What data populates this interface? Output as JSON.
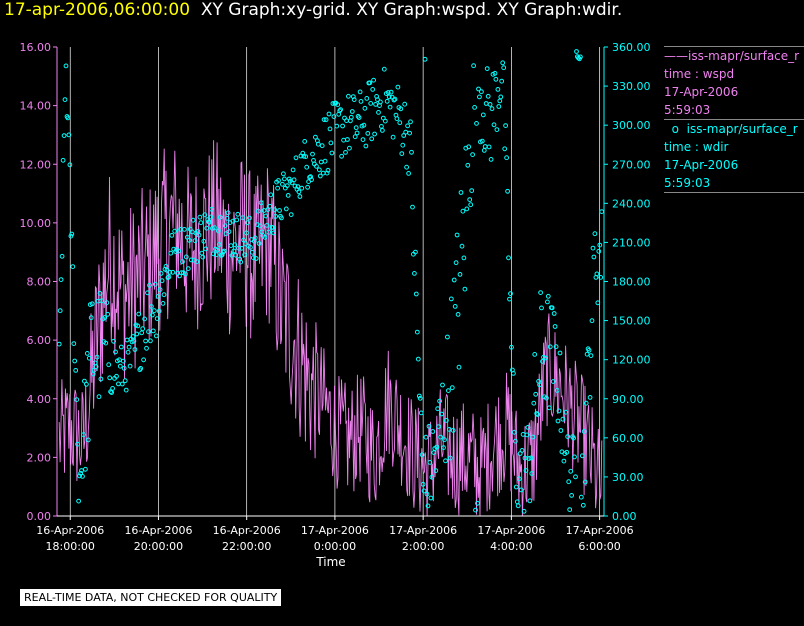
{
  "header": {
    "timestamp": "17-apr-2006,06:00:00",
    "titles": "XY Graph:xy-grid.  XY Graph:wspd.  XY Graph:wdir."
  },
  "legend": {
    "wspd": {
      "name": "iss-mapr/surface_r",
      "line2": "time : wspd",
      "line3": "17-Apr-2006",
      "line4": "5:59:03"
    },
    "wdir": {
      "name": "iss-mapr/surface_r",
      "line2": "time : wdir",
      "line3": "17-Apr-2006",
      "line4": "5:59:03"
    }
  },
  "footer": {
    "notice": "REAL-TIME DATA, NOT CHECKED FOR QUALITY"
  },
  "colors": {
    "wspd": "#ee82ee",
    "wdir": "#00ffff",
    "grid": "#ffffff",
    "title": "#ffff00"
  },
  "chart_data": {
    "type": "line",
    "xlabel": "Time",
    "x_range_hours": [
      17.7,
      30.1
    ],
    "x_ticks": [
      {
        "hour": 18,
        "line1": "16-Apr-2006",
        "line2": "18:00:00"
      },
      {
        "hour": 20,
        "line1": "16-Apr-2006",
        "line2": "20:00:00"
      },
      {
        "hour": 22,
        "line1": "16-Apr-2006",
        "line2": "22:00:00"
      },
      {
        "hour": 24,
        "line1": "17-Apr-2006",
        "line2": "0:00:00"
      },
      {
        "hour": 26,
        "line1": "17-Apr-2006",
        "line2": "2:00:00"
      },
      {
        "hour": 28,
        "line1": "17-Apr-2006",
        "line2": "4:00:00"
      },
      {
        "hour": 30,
        "line1": "17-Apr-2006",
        "line2": "6:00:00"
      }
    ],
    "y_left": {
      "min": 0,
      "max": 16,
      "ticks": [
        "0.00",
        "2.00",
        "4.00",
        "6.00",
        "8.00",
        "10.00",
        "12.00",
        "14.00",
        "16.00"
      ]
    },
    "y_right": {
      "min": 0,
      "max": 360,
      "ticks": [
        "0.00",
        "30.00",
        "60.00",
        "90.00",
        "120.00",
        "150.00",
        "180.00",
        "210.00",
        "240.00",
        "270.00",
        "300.00",
        "330.00",
        "360.00"
      ]
    },
    "series": [
      {
        "name": "iss-mapr/surface_r time : wspd",
        "axis": "left",
        "style": "line",
        "hours": [
          17.7,
          18.0,
          18.3,
          18.6,
          18.9,
          19.2,
          19.5,
          19.8,
          20.1,
          20.4,
          20.7,
          21.0,
          21.3,
          21.6,
          21.9,
          22.2,
          22.5,
          22.8,
          23.1,
          23.4,
          23.7,
          24.0,
          24.3,
          24.6,
          24.9,
          25.2,
          25.5,
          25.8,
          26.1,
          26.4,
          26.7,
          27.0,
          27.3,
          27.6,
          27.9,
          28.2,
          28.5,
          28.8,
          29.1,
          29.4,
          29.7,
          30.0
        ],
        "values": [
          2.5,
          3.0,
          2.5,
          6.0,
          9.0,
          7.5,
          8.0,
          8.5,
          9.5,
          10.0,
          9.0,
          9.5,
          10.0,
          9.0,
          9.5,
          8.5,
          9.5,
          7.0,
          6.0,
          4.5,
          4.0,
          3.0,
          2.5,
          3.0,
          2.0,
          4.0,
          3.0,
          2.0,
          1.5,
          2.5,
          2.0,
          2.0,
          1.5,
          2.5,
          3.0,
          1.5,
          2.0,
          5.0,
          4.5,
          3.5,
          2.5,
          1.0
        ],
        "amplitudes": [
          2,
          2,
          2,
          3,
          3,
          3,
          3,
          3,
          3,
          3,
          3,
          3,
          3,
          3,
          3,
          3,
          3,
          3,
          3,
          3,
          2,
          2,
          2,
          2,
          2,
          2,
          2,
          2,
          2,
          2,
          2,
          2,
          2,
          2,
          2,
          2,
          2,
          2,
          2,
          2,
          2,
          2
        ]
      },
      {
        "name": "iss-mapr/surface_r time : wdir",
        "axis": "right",
        "style": "markers",
        "hours": [
          17.7,
          17.9,
          18.2,
          18.5,
          18.8,
          19.1,
          19.4,
          19.7,
          20.0,
          20.3,
          20.6,
          20.9,
          21.2,
          21.5,
          21.8,
          22.1,
          22.4,
          22.7,
          23.0,
          23.3,
          23.6,
          23.9,
          24.2,
          24.5,
          24.8,
          25.1,
          25.4,
          25.7,
          26.0,
          26.3,
          26.6,
          26.9,
          27.2,
          27.5,
          27.8,
          28.1,
          28.4,
          28.7,
          29.0,
          29.3,
          29.6,
          29.9
        ],
        "values": [
          30,
          350,
          25,
          130,
          130,
          110,
          120,
          150,
          170,
          200,
          205,
          215,
          220,
          220,
          215,
          210,
          225,
          240,
          250,
          270,
          280,
          290,
          300,
          300,
          310,
          320,
          310,
          290,
          20,
          50,
          100,
          200,
          340,
          300,
          345,
          30,
          40,
          130,
          120,
          35,
          20,
          200
        ],
        "spreads": [
          30,
          20,
          30,
          60,
          40,
          20,
          20,
          30,
          30,
          20,
          20,
          20,
          20,
          20,
          20,
          20,
          20,
          20,
          20,
          20,
          25,
          25,
          25,
          25,
          25,
          25,
          25,
          30,
          40,
          40,
          60,
          80,
          40,
          40,
          30,
          30,
          40,
          60,
          40,
          30,
          40,
          40
        ]
      }
    ]
  }
}
